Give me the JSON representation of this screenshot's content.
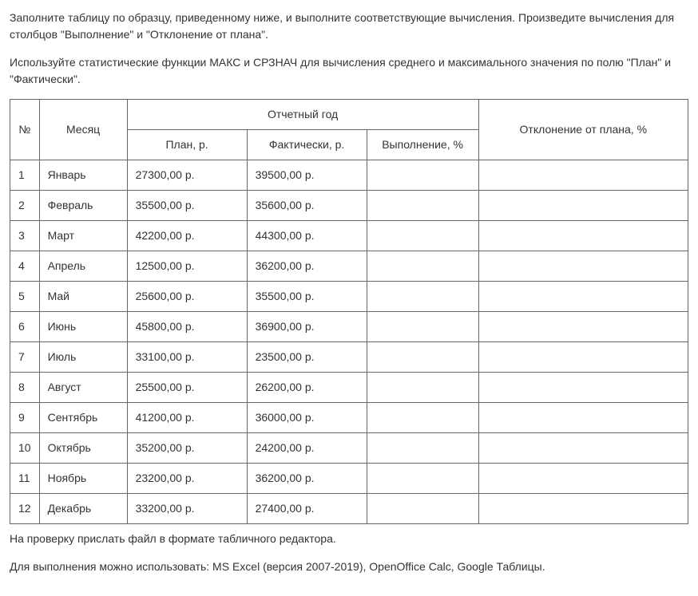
{
  "paragraphs": {
    "p1": "Заполните таблицу по образцу, приведенному ниже, и выполните соответствующие вычисления. Произведите вычисления для столбцов \"Выполнение\" и \"Отклонение от плана\".",
    "p2": "Используйте статистические функции МАКС и СРЗНАЧ для вычисления среднего и максимального значения по полю \"План\" и \"Фактически\".",
    "p3": "На проверку прислать файл в формате табличного редактора.",
    "p4": "Для выполнения можно использовать: MS Excel (версия 2007-2019), OpenOffice Calc, Google Таблицы."
  },
  "table": {
    "headers": {
      "num": "№",
      "month": "Месяц",
      "report_year": "Отчетный год",
      "plan": "План, р.",
      "fact": "Фактически, р.",
      "vypolnenie": "Выполнение, %",
      "otklonenie": "Отклонение от плана, %"
    },
    "rows": [
      {
        "num": "1",
        "month": "Январь",
        "plan": "27300,00 р.",
        "fact": "39500,00 р.",
        "vypolnenie": "",
        "otklonenie": ""
      },
      {
        "num": "2",
        "month": "Февраль",
        "plan": "35500,00 р.",
        "fact": "35600,00 р.",
        "vypolnenie": "",
        "otklonenie": ""
      },
      {
        "num": "3",
        "month": "Март",
        "plan": "42200,00 р.",
        "fact": "44300,00 р.",
        "vypolnenie": "",
        "otklonenie": ""
      },
      {
        "num": "4",
        "month": "Апрель",
        "plan": "12500,00 р.",
        "fact": "36200,00 р.",
        "vypolnenie": "",
        "otklonenie": ""
      },
      {
        "num": "5",
        "month": "Май",
        "plan": "25600,00 р.",
        "fact": "35500,00 р.",
        "vypolnenie": "",
        "otklonenie": ""
      },
      {
        "num": "6",
        "month": "Июнь",
        "plan": "45800,00 р.",
        "fact": "36900,00 р.",
        "vypolnenie": "",
        "otklonenie": ""
      },
      {
        "num": "7",
        "month": "Июль",
        "plan": "33100,00 р.",
        "fact": "23500,00 р.",
        "vypolnenie": "",
        "otklonenie": ""
      },
      {
        "num": "8",
        "month": "Август",
        "plan": "25500,00 р.",
        "fact": "26200,00 р.",
        "vypolnenie": "",
        "otklonenie": ""
      },
      {
        "num": "9",
        "month": "Сентябрь",
        "plan": "41200,00 р.",
        "fact": "36000,00 р.",
        "vypolnenie": "",
        "otklonenie": ""
      },
      {
        "num": "10",
        "month": "Октябрь",
        "plan": "35200,00 р.",
        "fact": "24200,00 р.",
        "vypolnenie": "",
        "otklonenie": ""
      },
      {
        "num": "11",
        "month": "Ноябрь",
        "plan": "23200,00 р.",
        "fact": "36200,00 р.",
        "vypolnenie": "",
        "otklonenie": ""
      },
      {
        "num": "12",
        "month": "Декабрь",
        "plan": "33200,00 р.",
        "fact": "27400,00 р.",
        "vypolnenie": "",
        "otklonenie": ""
      }
    ]
  }
}
